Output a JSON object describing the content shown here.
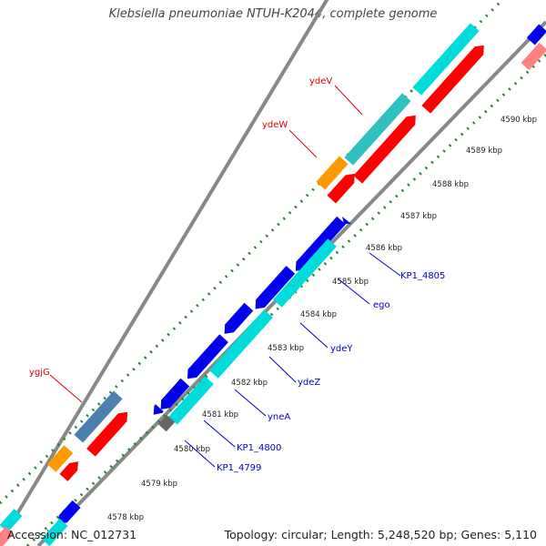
{
  "header": {
    "title": "Klebsiella pneumoniae NTUH-K2044, complete genome"
  },
  "footer": {
    "accession": "Accession: NC_012731",
    "topology": "Topology: circular; Length: 5,248,520 bp; Genes: 5,110"
  },
  "colors": {
    "forward_gene": "#ff0000",
    "forward_gene_alt": "#ff8080",
    "reverse_gene": "#0000ee",
    "cyan_track": "#00dcdc",
    "cyan_track_dark": "#30c0c0",
    "orange_gene": "#ff9900",
    "steelblue_gene": "#4a7fb0",
    "gray_gene": "#666666",
    "backbone": "#888888",
    "dotted_track": "#228822",
    "forward_label": "#dd0000",
    "reverse_label": "#0000cc"
  },
  "ticks": [
    {
      "label": "4578 kbp"
    },
    {
      "label": "4579 kbp"
    },
    {
      "label": "4580 kbp"
    },
    {
      "label": "4581 kbp"
    },
    {
      "label": "4582 kbp"
    },
    {
      "label": "4583 kbp"
    },
    {
      "label": "4584 kbp"
    },
    {
      "label": "4585 kbp"
    },
    {
      "label": "4586 kbp"
    },
    {
      "label": "4587 kbp"
    },
    {
      "label": "4588 kbp"
    },
    {
      "label": "4589 kbp"
    },
    {
      "label": "4590 kbp"
    }
  ],
  "gene_labels": {
    "forward": [
      {
        "name": "ydeV"
      },
      {
        "name": "ydeW"
      },
      {
        "name": "ygjG"
      }
    ],
    "reverse": [
      {
        "name": "KP1_4805"
      },
      {
        "name": "ego"
      },
      {
        "name": "ydeY"
      },
      {
        "name": "ydeZ"
      },
      {
        "name": "yneA"
      },
      {
        "name": "KP1_4800"
      },
      {
        "name": "KP1_4799"
      }
    ]
  }
}
